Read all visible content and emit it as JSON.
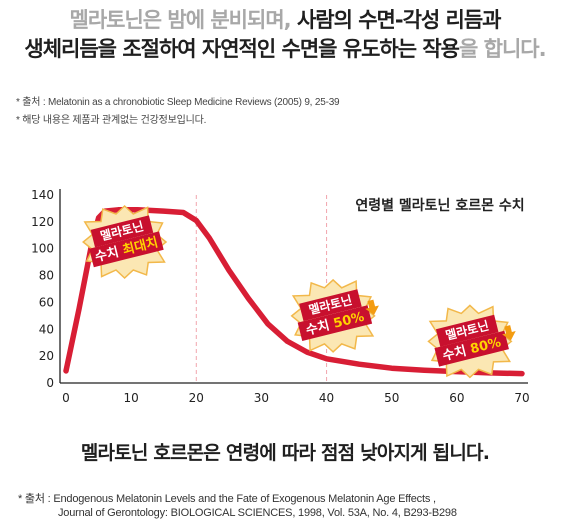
{
  "headline": {
    "line1_gray": "멜라토닌은 밤에 분비되며, ",
    "line1_dark": "사람의 수면-각성 리듬과",
    "line2_dark": "생체리듬을 조절하여 자연적인 수면을 유도하는 작용",
    "line2_gray": "을 합니다."
  },
  "notes": [
    "* 출처 : Melatonin as a chronobiotic Sleep Medicine Reviews (2005) 9, 25-39",
    "* 해당 내용은 제품과 관계없는 건강정보입니다."
  ],
  "chart_data": {
    "type": "line",
    "title": "연령별 멜라토닌 호르몬 수치",
    "xlabel": "",
    "ylabel": "",
    "xlim": [
      0,
      70
    ],
    "ylim": [
      0,
      140
    ],
    "x_ticks": [
      0,
      10,
      20,
      30,
      40,
      50,
      60,
      70
    ],
    "y_ticks": [
      0,
      20,
      40,
      60,
      80,
      100,
      120,
      140
    ],
    "grid": false,
    "reference_lines_x": [
      20,
      40
    ],
    "series": [
      {
        "color": "#d81e35",
        "points": [
          [
            0,
            9
          ],
          [
            2,
            55
          ],
          [
            4,
            105
          ],
          [
            5,
            123
          ],
          [
            6,
            128
          ],
          [
            8,
            129
          ],
          [
            11,
            129
          ],
          [
            15,
            128
          ],
          [
            18,
            127
          ],
          [
            20,
            121
          ],
          [
            22,
            108
          ],
          [
            25,
            84
          ],
          [
            28,
            63
          ],
          [
            31,
            44
          ],
          [
            34,
            31
          ],
          [
            37,
            23
          ],
          [
            40,
            18
          ],
          [
            45,
            14
          ],
          [
            50,
            11
          ],
          [
            55,
            9.5
          ],
          [
            60,
            8.5
          ],
          [
            65,
            7.5
          ],
          [
            70,
            7
          ]
        ]
      }
    ],
    "annotations": [
      {
        "x": 9,
        "y": 105,
        "line1": "멜라토닌",
        "line2_a": "수치 ",
        "line2_b": "최대치"
      },
      {
        "x": 41,
        "y": 50,
        "line1": "멜라토닌",
        "line2_a": "수치 ",
        "line2_b": "50%"
      },
      {
        "x": 62,
        "y": 31,
        "line1": "멜라토닌",
        "line2_a": "수치 ",
        "line2_b": "80%"
      }
    ]
  },
  "footline": "멜라토닌 호르몬은 연령에 따라 점점 낮아지게 됩니다.",
  "source": {
    "line1": "* 출처 : Endogenous Melatonin Levels and the Fate of Exogenous Melatonin  Age  Effects ,",
    "line2": "Journal of Gerontology: BIOLOGICAL SCIENCES, 1998, Vol. 53A, No. 4, B293-B298"
  },
  "colors": {
    "line": "#d81e35",
    "reference": "#f2a5ad",
    "burst_fill": "#fbe7b3",
    "burst_stroke": "#f2b84a",
    "badge": "#c8102e",
    "badge_highlight": "#ffd400",
    "arrow": "#f39c12"
  },
  "icons": [
    "starburst-icon",
    "down-arrow-icon"
  ]
}
